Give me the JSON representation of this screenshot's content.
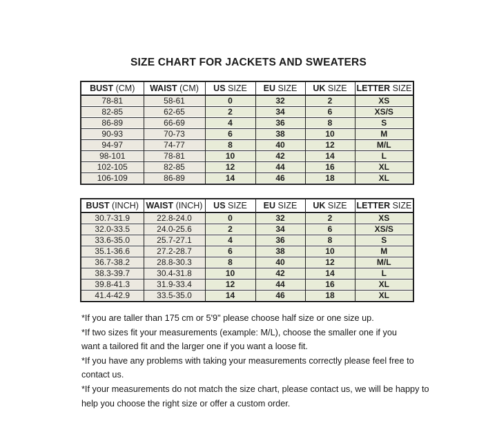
{
  "page": {
    "title": "SIZE CHART FOR JACKETS AND SWEATERS"
  },
  "colors": {
    "measure_column_bg": "#ece9e0",
    "size_column_bg": "#e8ecd8",
    "border": "#1f1f1f",
    "page_bg": "#ffffff",
    "text": "#1c1c1c"
  },
  "tables": [
    {
      "name": "cm-size-table",
      "headers": [
        {
          "bold": "BUST",
          "rest": " (CM)"
        },
        {
          "bold": "WAIST",
          "rest": " (CM)"
        },
        {
          "bold": "US",
          "rest": " SIZE"
        },
        {
          "bold": "EU",
          "rest": " SIZE"
        },
        {
          "bold": "UK",
          "rest": " SIZE"
        },
        {
          "bold": "LETTER",
          "rest": " SIZE"
        }
      ],
      "rows": [
        [
          "78-81",
          "58-61",
          "0",
          "32",
          "2",
          "XS"
        ],
        [
          "82-85",
          "62-65",
          "2",
          "34",
          "6",
          "XS/S"
        ],
        [
          "86-89",
          "66-69",
          "4",
          "36",
          "8",
          "S"
        ],
        [
          "90-93",
          "70-73",
          "6",
          "38",
          "10",
          "M"
        ],
        [
          "94-97",
          "74-77",
          "8",
          "40",
          "12",
          "M/L"
        ],
        [
          "98-101",
          "78-81",
          "10",
          "42",
          "14",
          "L"
        ],
        [
          "102-105",
          "82-85",
          "12",
          "44",
          "16",
          "XL"
        ],
        [
          "106-109",
          "86-89",
          "14",
          "46",
          "18",
          "XL"
        ]
      ]
    },
    {
      "name": "inch-size-table",
      "headers": [
        {
          "bold": "BUST",
          "rest": " (INCH)"
        },
        {
          "bold": "WAIST",
          "rest": " (INCH)"
        },
        {
          "bold": "US",
          "rest": " SIZE"
        },
        {
          "bold": "EU",
          "rest": " SIZE"
        },
        {
          "bold": "UK",
          "rest": " SIZE"
        },
        {
          "bold": "LETTER",
          "rest": " SIZE"
        }
      ],
      "rows": [
        [
          "30.7-31.9",
          "22.8-24.0",
          "0",
          "32",
          "2",
          "XS"
        ],
        [
          "32.0-33.5",
          "24.0-25.6",
          "2",
          "34",
          "6",
          "XS/S"
        ],
        [
          "33.6-35.0",
          "25.7-27.1",
          "4",
          "36",
          "8",
          "S"
        ],
        [
          "35.1-36.6",
          "27.2-28.7",
          "6",
          "38",
          "10",
          "M"
        ],
        [
          "36.7-38.2",
          "28.8-30.3",
          "8",
          "40",
          "12",
          "M/L"
        ],
        [
          "38.3-39.7",
          "30.4-31.8",
          "10",
          "42",
          "14",
          "L"
        ],
        [
          "39.8-41.3",
          "31.9-33.4",
          "12",
          "44",
          "16",
          "XL"
        ],
        [
          "41.4-42.9",
          "33.5-35.0",
          "14",
          "46",
          "18",
          "XL"
        ]
      ]
    }
  ],
  "footnotes": [
    "*If you are taller than 175 cm or 5'9\" please choose half size or one size up.",
    "*If two sizes fit your measurements (example: M/L), choose the smaller one if you\nwant a tailored fit and the larger one if you want a loose fit.",
    "*If you have any problems with taking your measurements correctly please feel free to\ncontact us.",
    "*If your measurements do not match the size chart, please contact us, we will be happy to\nhelp you choose the right size or offer a custom order."
  ]
}
